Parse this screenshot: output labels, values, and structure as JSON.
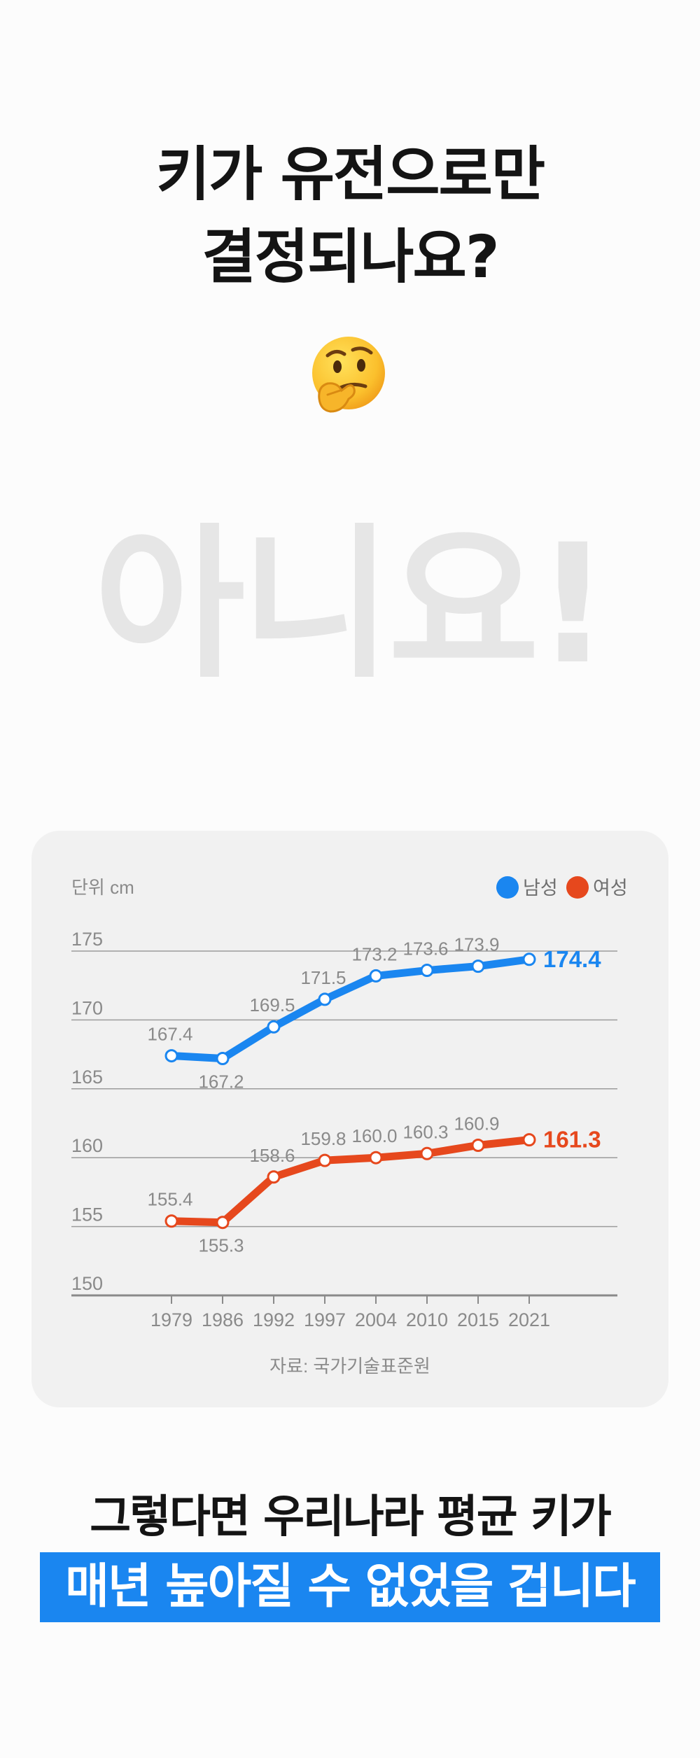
{
  "headline": {
    "line1": "키가 유전으로만",
    "line2": "결정되나요?"
  },
  "emoji": {
    "icon": "thinking-face-icon"
  },
  "answer": "아니요!",
  "chart_data": {
    "type": "line",
    "unit_label": "단위 cm",
    "categories": [
      "1979",
      "1986",
      "1992",
      "1997",
      "2004",
      "2010",
      "2015",
      "2021"
    ],
    "ylim": [
      150,
      175
    ],
    "yticks": [
      150,
      155,
      160,
      165,
      170,
      175
    ],
    "grid": true,
    "legend_position": "top-right",
    "series": [
      {
        "name": "남성",
        "color": "#1a86f0",
        "values": [
          167.4,
          167.2,
          169.5,
          171.5,
          173.2,
          173.6,
          173.9,
          174.4
        ],
        "labels": [
          "167.4",
          "167.2",
          "169.5",
          "171.5",
          "173.2",
          "173.6",
          "173.9",
          "174.4"
        ]
      },
      {
        "name": "여성",
        "color": "#e6481d",
        "values": [
          155.4,
          155.3,
          158.6,
          159.8,
          160.0,
          160.3,
          160.9,
          161.3
        ],
        "labels": [
          "155.4",
          "155.3",
          "158.6",
          "159.8",
          "160.0",
          "160.3",
          "160.9",
          "161.3"
        ]
      }
    ],
    "source": "자료: 국가기술표준원"
  },
  "bottom": {
    "line1": "그렇다면 우리나라 평균 키가",
    "line2": "매년 높아질 수 없었을 겁니다"
  }
}
